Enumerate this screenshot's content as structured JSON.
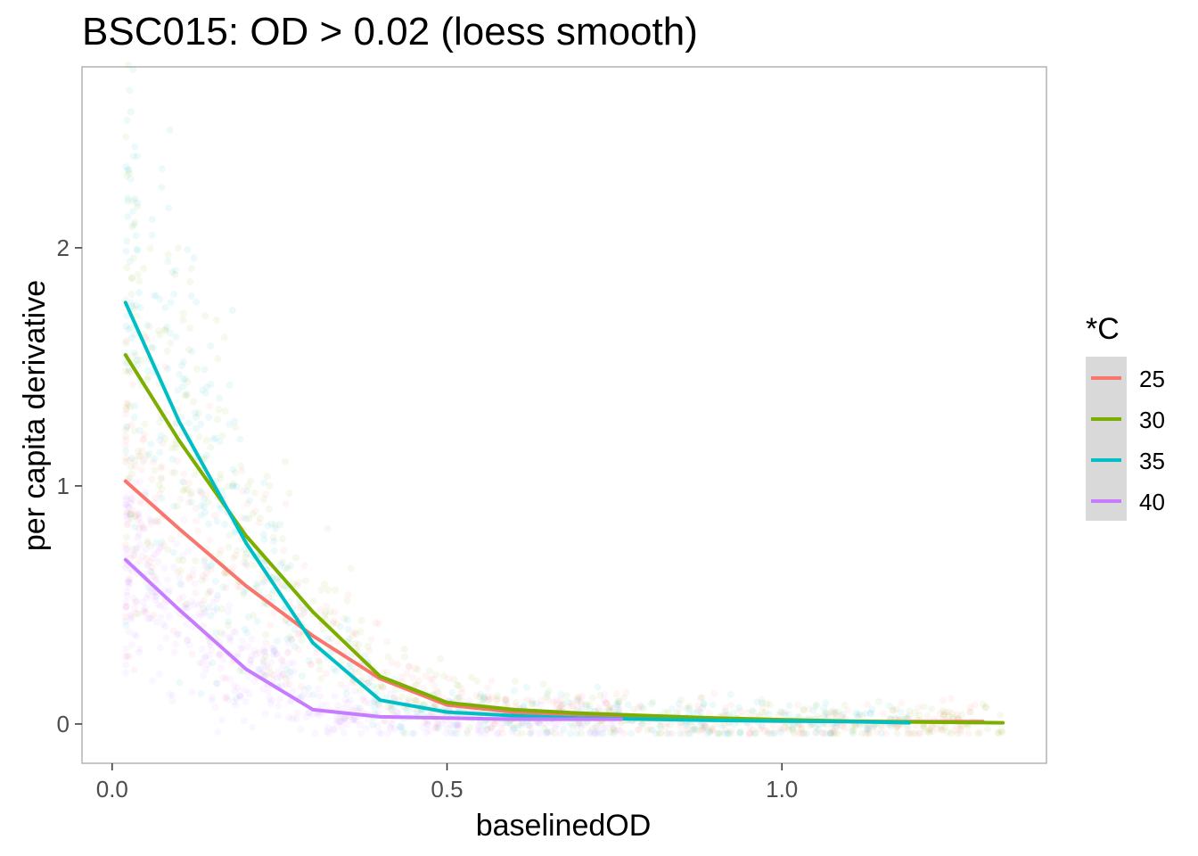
{
  "chart_data": {
    "type": "line",
    "title": "BSC015: OD > 0.02 (loess smooth)",
    "xlabel": "baselinedOD",
    "ylabel": "per capita derivative",
    "xlim": [
      -0.045,
      1.395
    ],
    "ylim": [
      -0.165,
      2.76
    ],
    "xticks": [
      0.0,
      0.5,
      1.0
    ],
    "xtick_labels": [
      "0.0",
      "0.5",
      "1.0"
    ],
    "yticks": [
      0,
      1,
      2
    ],
    "ytick_labels": [
      "0",
      "1",
      "2"
    ],
    "grid": false,
    "legend": {
      "title": "*C",
      "position": "right"
    },
    "series": [
      {
        "name": "25",
        "color": "#f8766d",
        "x": [
          0.02,
          0.1,
          0.2,
          0.3,
          0.4,
          0.5,
          0.6,
          0.7,
          0.8,
          0.9,
          1.0,
          1.1,
          1.2,
          1.3
        ],
        "y": [
          1.02,
          0.82,
          0.58,
          0.37,
          0.19,
          0.08,
          0.05,
          0.04,
          0.03,
          0.02,
          0.015,
          0.01,
          0.01,
          0.01
        ]
      },
      {
        "name": "30",
        "color": "#7cae00",
        "x": [
          0.02,
          0.1,
          0.2,
          0.3,
          0.4,
          0.5,
          0.6,
          0.7,
          0.8,
          0.9,
          1.0,
          1.1,
          1.2,
          1.33
        ],
        "y": [
          1.55,
          1.19,
          0.79,
          0.47,
          0.2,
          0.09,
          0.06,
          0.045,
          0.035,
          0.025,
          0.018,
          0.012,
          0.008,
          0.005
        ]
      },
      {
        "name": "35",
        "color": "#00bfc4",
        "x": [
          0.02,
          0.1,
          0.2,
          0.3,
          0.4,
          0.5,
          0.6,
          0.7,
          0.8,
          0.9,
          1.0,
          1.1,
          1.19
        ],
        "y": [
          1.77,
          1.27,
          0.76,
          0.34,
          0.1,
          0.05,
          0.035,
          0.025,
          0.02,
          0.015,
          0.012,
          0.01,
          0.005
        ]
      },
      {
        "name": "40",
        "color": "#c77cff",
        "x": [
          0.02,
          0.1,
          0.2,
          0.3,
          0.4,
          0.5,
          0.6,
          0.76
        ],
        "y": [
          0.69,
          0.48,
          0.23,
          0.06,
          0.03,
          0.025,
          0.02,
          0.02
        ]
      }
    ]
  }
}
